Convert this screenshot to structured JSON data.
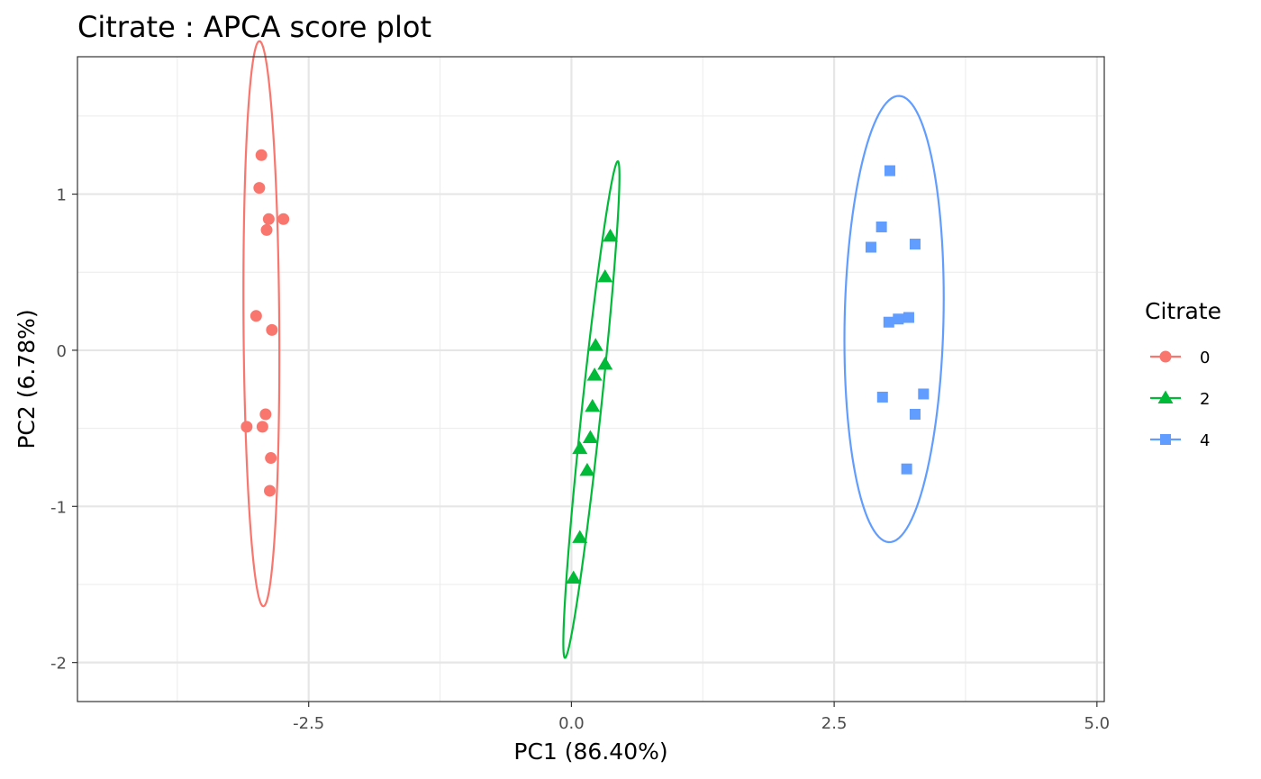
{
  "chart_data": {
    "type": "scatter",
    "title": "Citrate : APCA score plot",
    "xlabel": "PC1 (86.40%)",
    "ylabel": "PC2 (6.78%)",
    "xlim": [
      -4.7,
      5.07
    ],
    "ylim": [
      -2.25,
      1.88
    ],
    "x_major_ticks": [
      -2.5,
      0.0,
      2.5,
      5.0
    ],
    "x_tick_labels": [
      "-2.5",
      "0.0",
      "2.5",
      "5.0"
    ],
    "x_minor_ticks": [
      -3.75,
      -1.25,
      1.25,
      3.75
    ],
    "y_major_ticks": [
      -2,
      -1,
      0,
      1
    ],
    "y_tick_labels": [
      "-2",
      "-1",
      "0",
      "1"
    ],
    "y_minor_ticks": [
      -1.5,
      -0.5,
      0.5,
      1.5
    ],
    "grid": true,
    "legend": {
      "title": "Citrate",
      "position": "right"
    },
    "series": [
      {
        "name": "0",
        "color": "#F8766D",
        "shape": "circle",
        "points": [
          [
            -2.95,
            1.25
          ],
          [
            -2.97,
            1.04
          ],
          [
            -2.88,
            0.84
          ],
          [
            -2.74,
            0.84
          ],
          [
            -2.9,
            0.77
          ],
          [
            -3.0,
            0.22
          ],
          [
            -2.85,
            0.13
          ],
          [
            -2.91,
            -0.41
          ],
          [
            -3.09,
            -0.49
          ],
          [
            -2.94,
            -0.49
          ],
          [
            -2.86,
            -0.69
          ],
          [
            -2.87,
            -0.9
          ]
        ],
        "ellipse": {
          "cx": -2.95,
          "cy": 0.17,
          "rx": 0.17,
          "ry": 1.81,
          "angle_deg": -0.6
        }
      },
      {
        "name": "2",
        "color": "#00BA38",
        "shape": "triangle",
        "points": [
          [
            0.37,
            0.73
          ],
          [
            0.32,
            0.47
          ],
          [
            0.23,
            0.03
          ],
          [
            0.32,
            -0.09
          ],
          [
            0.22,
            -0.16
          ],
          [
            0.2,
            -0.36
          ],
          [
            0.18,
            -0.56
          ],
          [
            0.08,
            -0.63
          ],
          [
            0.15,
            -0.77
          ],
          [
            0.08,
            -1.2
          ],
          [
            0.02,
            -1.46
          ]
        ],
        "ellipse": {
          "cx": 0.19,
          "cy": -0.38,
          "rx": 0.09,
          "ry": 1.61,
          "angle_deg": 9.0
        }
      },
      {
        "name": "4",
        "color": "#619CFF",
        "shape": "square",
        "points": [
          [
            3.03,
            1.15
          ],
          [
            2.95,
            0.79
          ],
          [
            2.85,
            0.66
          ],
          [
            3.27,
            0.68
          ],
          [
            3.21,
            0.21
          ],
          [
            3.11,
            0.2
          ],
          [
            3.02,
            0.18
          ],
          [
            2.96,
            -0.3
          ],
          [
            3.35,
            -0.28
          ],
          [
            3.27,
            -0.41
          ],
          [
            3.19,
            -0.76
          ]
        ],
        "ellipse": {
          "cx": 3.07,
          "cy": 0.2,
          "rx": 0.47,
          "ry": 1.43,
          "angle_deg": 2.0
        }
      }
    ]
  }
}
